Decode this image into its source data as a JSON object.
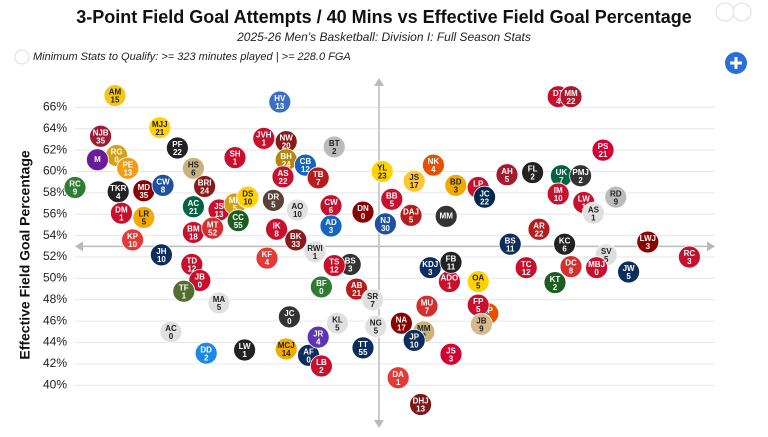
{
  "chart_data": {
    "type": "scatter",
    "title": "3-Point Field Goal Attempts / 40 Mins vs Effective Field Goal Percentage",
    "subtitle": "2025-26 Men's Basketball: Division I: Full Season Stats",
    "note": "Minimum Stats to Qualify: >= 323 minutes played | >= 228.0 FGA",
    "y_label": "Effective Field Goal Percentage",
    "xlim": [
      0,
      20
    ],
    "ylim": [
      36,
      68
    ],
    "yticks": [
      {
        "value": 40,
        "label": "40%"
      },
      {
        "value": 42,
        "label": "42%"
      },
      {
        "value": 44,
        "label": "44%"
      },
      {
        "value": 46,
        "label": "46%"
      },
      {
        "value": 48,
        "label": "48%"
      },
      {
        "value": 50,
        "label": "50%"
      },
      {
        "value": 52,
        "label": "52%"
      },
      {
        "value": 54,
        "label": "54%"
      },
      {
        "value": 56,
        "label": "56%"
      },
      {
        "value": 58,
        "label": "58%"
      },
      {
        "value": 60,
        "label": "60%"
      },
      {
        "value": 62,
        "label": "62%"
      },
      {
        "value": 64,
        "label": "64%"
      },
      {
        "value": 66,
        "label": "66%"
      }
    ],
    "grid": true,
    "reference_lines": {
      "x": 9.5,
      "y": 53
    },
    "points": [
      {
        "label": "AM",
        "number": "15",
        "x": 1.25,
        "y": 67.1,
        "color": "#f5c518"
      },
      {
        "label": "HV",
        "number": "13",
        "x": 6.4,
        "y": 66.5,
        "color": "#3a6fc4"
      },
      {
        "label": "DT",
        "number": "4",
        "x": 15.1,
        "y": 67.0,
        "color": "#c8102e"
      },
      {
        "label": "MM",
        "number": "22",
        "x": 15.5,
        "y": 67.0,
        "color": "#b0152a"
      },
      {
        "label": "NJB",
        "number": "35",
        "x": 0.8,
        "y": 63.3,
        "color": "#9e1b32"
      },
      {
        "label": "MJJ",
        "number": "21",
        "x": 2.65,
        "y": 64.1,
        "color": "#ffd200"
      },
      {
        "label": "PF",
        "number": "22",
        "x": 3.2,
        "y": 62.2,
        "color": "#222222"
      },
      {
        "label": "JVH",
        "number": "1",
        "x": 5.9,
        "y": 63.1,
        "color": "#c8102e"
      },
      {
        "label": "NW",
        "number": "20",
        "x": 6.6,
        "y": 62.8,
        "color": "#8b1a1a"
      },
      {
        "label": "BT",
        "number": "2",
        "x": 8.1,
        "y": 62.3,
        "color": "#bbbbbb"
      },
      {
        "label": "RG",
        "number": "0",
        "x": 1.3,
        "y": 61.5,
        "color": "#d4a017"
      },
      {
        "label": "PE",
        "number": "13",
        "x": 1.65,
        "y": 60.3,
        "color": "#f39c12"
      },
      {
        "label": "M",
        "number": "",
        "x": 0.7,
        "y": 61.1,
        "color": "#6a1b9a"
      },
      {
        "label": "SH",
        "number": "1",
        "x": 5.0,
        "y": 61.3,
        "color": "#c8102e"
      },
      {
        "label": "BH",
        "number": "24",
        "x": 6.6,
        "y": 61.1,
        "color": "#b8860b"
      },
      {
        "label": "CB",
        "number": "12",
        "x": 7.2,
        "y": 60.6,
        "color": "#1565c0"
      },
      {
        "label": "HS",
        "number": "6",
        "x": 3.7,
        "y": 60.3,
        "color": "#c9b27c"
      },
      {
        "label": "AS",
        "number": "22",
        "x": 6.5,
        "y": 59.5,
        "color": "#c8102e"
      },
      {
        "label": "TB",
        "number": "7",
        "x": 7.6,
        "y": 59.4,
        "color": "#b71c1c"
      },
      {
        "label": "YL",
        "number": "23",
        "x": 9.6,
        "y": 60.0,
        "color": "#ffd200"
      },
      {
        "label": "NK",
        "number": "4",
        "x": 11.2,
        "y": 60.6,
        "color": "#e65100"
      },
      {
        "label": "JS",
        "number": "17",
        "x": 10.6,
        "y": 59.1,
        "color": "#ffc72c"
      },
      {
        "label": "LP",
        "number": "0",
        "x": 12.6,
        "y": 58.5,
        "color": "#c8102e"
      },
      {
        "label": "AH",
        "number": "5",
        "x": 13.5,
        "y": 59.7,
        "color": "#a6192e"
      },
      {
        "label": "FL",
        "number": "2",
        "x": 14.3,
        "y": 59.9,
        "color": "#222222"
      },
      {
        "label": "UK",
        "number": "7",
        "x": 15.2,
        "y": 59.6,
        "color": "#006341"
      },
      {
        "label": "PMJ",
        "number": "2",
        "x": 15.8,
        "y": 59.6,
        "color": "#333333"
      },
      {
        "label": "PS",
        "number": "21",
        "x": 16.5,
        "y": 62.0,
        "color": "#d50032"
      },
      {
        "label": "RC",
        "number": "9",
        "x": 0.0,
        "y": 58.5,
        "color": "#2e7d32"
      },
      {
        "label": "TKR",
        "number": "4",
        "x": 1.35,
        "y": 58.1,
        "color": "#222222"
      },
      {
        "label": "MD",
        "number": "35",
        "x": 2.15,
        "y": 58.2,
        "color": "#8b0000"
      },
      {
        "label": "CW",
        "number": "8",
        "x": 2.75,
        "y": 58.7,
        "color": "#1e4fa0"
      },
      {
        "label": "BRI",
        "number": "24",
        "x": 4.05,
        "y": 58.6,
        "color": "#8b1a1a"
      },
      {
        "label": "BD",
        "number": "3",
        "x": 11.9,
        "y": 58.7,
        "color": "#f2a900"
      },
      {
        "label": "JC",
        "number": "22",
        "x": 12.8,
        "y": 57.6,
        "color": "#00274c"
      },
      {
        "label": "IM",
        "number": "10",
        "x": 15.1,
        "y": 57.9,
        "color": "#c8102e"
      },
      {
        "label": "RD",
        "number": "9",
        "x": 16.9,
        "y": 57.6,
        "color": "#bbbbbb"
      },
      {
        "label": "DM",
        "number": "1",
        "x": 1.45,
        "y": 56.1,
        "color": "#c8102e"
      },
      {
        "label": "LR",
        "number": "5",
        "x": 2.15,
        "y": 55.7,
        "color": "#f2a900"
      },
      {
        "label": "AC",
        "number": "21",
        "x": 3.7,
        "y": 56.7,
        "color": "#006341"
      },
      {
        "label": "JS",
        "number": "13",
        "x": 4.5,
        "y": 56.4,
        "color": "#c8102e"
      },
      {
        "label": "MR",
        "number": "5",
        "x": 5.0,
        "y": 56.96,
        "color": "#d4a017"
      },
      {
        "label": "DS",
        "number": "10",
        "x": 5.4,
        "y": 57.6,
        "color": "#ffd200"
      },
      {
        "label": "DR",
        "number": "5",
        "x": 6.2,
        "y": 57.3,
        "color": "#5d4037"
      },
      {
        "label": "AO",
        "number": "10",
        "x": 6.95,
        "y": 56.4,
        "color": "#e0e0e0"
      },
      {
        "label": "CW",
        "number": "6",
        "x": 8.0,
        "y": 56.8,
        "color": "#c8102e"
      },
      {
        "label": "DN",
        "number": "0",
        "x": 9.0,
        "y": 56.2,
        "color": "#8b0000"
      },
      {
        "label": "BB",
        "number": "5",
        "x": 9.9,
        "y": 57.4,
        "color": "#c8102e"
      },
      {
        "label": "DAJ",
        "number": "5",
        "x": 10.5,
        "y": 55.9,
        "color": "#b71c1c"
      },
      {
        "label": "MM",
        "number": "",
        "x": 11.6,
        "y": 55.8,
        "color": "#333333"
      },
      {
        "label": "LW",
        "number": "1",
        "x": 15.9,
        "y": 57.1,
        "color": "#c8102e"
      },
      {
        "label": "AS",
        "number": "1",
        "x": 16.2,
        "y": 56.1,
        "color": "#e0e0e0"
      },
      {
        "label": "BM",
        "number": "18",
        "x": 3.7,
        "y": 54.3,
        "color": "#c8102e"
      },
      {
        "label": "MT",
        "number": "52",
        "x": 4.3,
        "y": 54.7,
        "color": "#d32f2f"
      },
      {
        "label": "CC",
        "number": "55",
        "x": 5.1,
        "y": 55.4,
        "color": "#1b5e20"
      },
      {
        "label": "IK",
        "number": "8",
        "x": 6.3,
        "y": 54.6,
        "color": "#c8102e"
      },
      {
        "label": "AD",
        "number": "3",
        "x": 8.0,
        "y": 54.9,
        "color": "#1565c0"
      },
      {
        "label": "NJ",
        "number": "30",
        "x": 9.7,
        "y": 55.1,
        "color": "#1e4fa0"
      },
      {
        "label": "KP",
        "number": "10",
        "x": 1.8,
        "y": 53.6,
        "color": "#e53935"
      },
      {
        "label": "AR",
        "number": "22",
        "x": 14.5,
        "y": 54.6,
        "color": "#b71c1c"
      },
      {
        "label": "KC",
        "number": "6",
        "x": 15.3,
        "y": 53.2,
        "color": "#222222"
      },
      {
        "label": "LWJ",
        "number": "3",
        "x": 17.9,
        "y": 53.4,
        "color": "#8b0000"
      },
      {
        "label": "JH",
        "number": "10",
        "x": 2.7,
        "y": 52.2,
        "color": "#0d2d5e"
      },
      {
        "label": "TD",
        "number": "12",
        "x": 3.65,
        "y": 51.3,
        "color": "#c8102e"
      },
      {
        "label": "BK",
        "number": "33",
        "x": 6.9,
        "y": 53.6,
        "color": "#8b1a1a"
      },
      {
        "label": "RWI",
        "number": "1",
        "x": 7.5,
        "y": 52.5,
        "color": "#e0e0e0"
      },
      {
        "label": "BS",
        "number": "11",
        "x": 13.6,
        "y": 53.2,
        "color": "#0d2d5e"
      },
      {
        "label": "SV",
        "number": "5",
        "x": 16.6,
        "y": 52.2,
        "color": "#dddddd"
      },
      {
        "label": "RC",
        "number": "3",
        "x": 19.2,
        "y": 52.0,
        "color": "#c8102e"
      },
      {
        "label": "DC",
        "number": "8",
        "x": 15.5,
        "y": 51.1,
        "color": "#d32f2f"
      },
      {
        "label": "MBJ",
        "number": "0",
        "x": 16.3,
        "y": 51.0,
        "color": "#c8102e"
      },
      {
        "label": "JW",
        "number": "5",
        "x": 17.3,
        "y": 50.6,
        "color": "#0d2d5e"
      },
      {
        "label": "TC",
        "number": "12",
        "x": 14.1,
        "y": 51.0,
        "color": "#c8102e"
      },
      {
        "label": "KT",
        "number": "2",
        "x": 15.0,
        "y": 49.6,
        "color": "#1b5e20"
      },
      {
        "label": "JB",
        "number": "0",
        "x": 3.9,
        "y": 49.8,
        "color": "#c8102e"
      },
      {
        "label": "TF",
        "number": "1",
        "x": 3.4,
        "y": 48.8,
        "color": "#556b2f"
      },
      {
        "label": "MA",
        "number": "5",
        "x": 4.5,
        "y": 47.7,
        "color": "#e0e0e0"
      },
      {
        "label": "KF",
        "number": "4",
        "x": 6.0,
        "y": 51.9,
        "color": "#e53935"
      },
      {
        "label": "BF",
        "number": "0",
        "x": 7.7,
        "y": 49.2,
        "color": "#2e7d32"
      },
      {
        "label": "AB",
        "number": "21",
        "x": 8.8,
        "y": 49.0,
        "color": "#b71c1c"
      },
      {
        "label": "SR",
        "number": "7",
        "x": 9.3,
        "y": 48.0,
        "color": "#e0e0e0"
      },
      {
        "label": "AC",
        "number": "0",
        "x": 3.0,
        "y": 45.0,
        "color": "#e0e0e0"
      },
      {
        "label": "DD",
        "number": "2",
        "x": 4.1,
        "y": 43.0,
        "color": "#1e88e5"
      },
      {
        "label": "LW",
        "number": "1",
        "x": 5.3,
        "y": 43.3,
        "color": "#222222"
      },
      {
        "label": "MCJ",
        "number": "14",
        "x": 6.6,
        "y": 43.4,
        "color": "#f2a900"
      },
      {
        "label": "AF",
        "number": "0",
        "x": 7.3,
        "y": 42.8,
        "color": "#0d2d5e"
      },
      {
        "label": "JR",
        "number": "4",
        "x": 7.6,
        "y": 44.5,
        "color": "#5e35b1"
      },
      {
        "label": "LB",
        "number": "2",
        "x": 7.7,
        "y": 41.8,
        "color": "#c8102e"
      },
      {
        "label": "JC",
        "number": "0",
        "x": 6.7,
        "y": 46.4,
        "color": "#333333"
      },
      {
        "label": "KL",
        "number": "5",
        "x": 8.2,
        "y": 45.8,
        "color": "#e0e0e0"
      },
      {
        "label": "TT",
        "number": "55",
        "x": 9.0,
        "y": 43.5,
        "color": "#0d2d5e"
      },
      {
        "label": "NG",
        "number": "5",
        "x": 9.4,
        "y": 45.5,
        "color": "#e0e0e0"
      },
      {
        "label": "NA",
        "number": "17",
        "x": 10.2,
        "y": 45.8,
        "color": "#8b0000"
      },
      {
        "label": "MM",
        "number": "2",
        "x": 10.9,
        "y": 45.0,
        "color": "#c9b27c"
      },
      {
        "label": "JP",
        "number": "10",
        "x": 10.6,
        "y": 44.2,
        "color": "#0d2d5e"
      },
      {
        "label": "JS",
        "number": "3",
        "x": 11.75,
        "y": 42.9,
        "color": "#d50032"
      },
      {
        "label": "DA",
        "number": "1",
        "x": 10.1,
        "y": 40.7,
        "color": "#e53935"
      },
      {
        "label": "DHJ",
        "number": "13",
        "x": 10.8,
        "y": 38.2,
        "color": "#7b1818"
      },
      {
        "label": "MU",
        "number": "7",
        "x": 11.0,
        "y": 47.4,
        "color": "#d32f2f"
      },
      {
        "label": "TP",
        "number": "0",
        "x": 12.9,
        "y": 46.7,
        "color": "#e65100"
      },
      {
        "label": "FP",
        "number": "5",
        "x": 12.6,
        "y": 47.5,
        "color": "#c8102e"
      },
      {
        "label": "JB",
        "number": "9",
        "x": 12.7,
        "y": 45.7,
        "color": "#d7b98e"
      },
      {
        "label": "OA",
        "number": "5",
        "x": 12.6,
        "y": 49.7,
        "color": "#ffd200"
      },
      {
        "label": "ADO",
        "number": "1",
        "x": 11.7,
        "y": 49.7,
        "color": "#c8102e"
      },
      {
        "label": "KDJ",
        "number": "3",
        "x": 11.1,
        "y": 51.0,
        "color": "#0d2d5e"
      },
      {
        "label": "FB",
        "number": "11",
        "x": 11.75,
        "y": 51.5,
        "color": "#222222"
      },
      {
        "label": "BS",
        "number": "3",
        "x": 8.6,
        "y": 51.3,
        "color": "#333333"
      },
      {
        "label": "TS",
        "number": "12",
        "x": 8.1,
        "y": 51.2,
        "color": "#c8102e"
      }
    ]
  }
}
